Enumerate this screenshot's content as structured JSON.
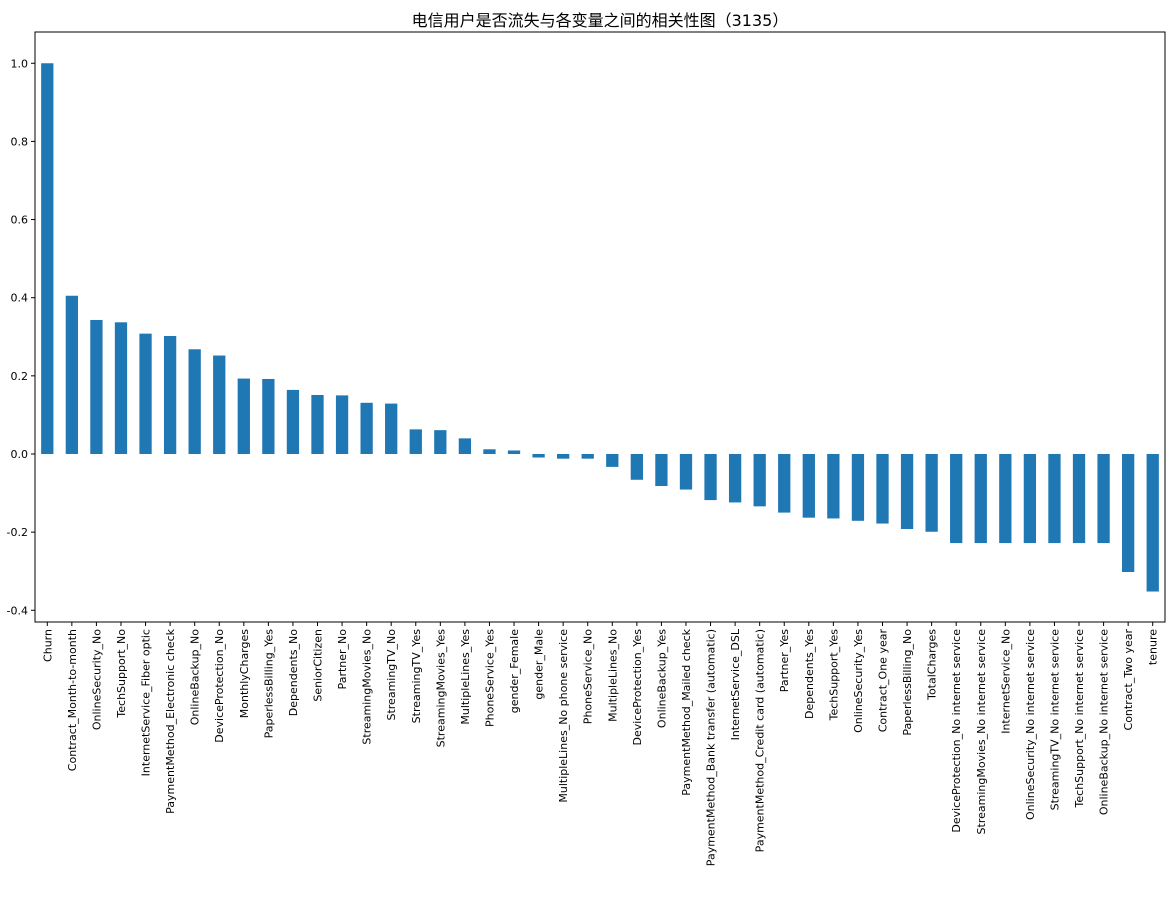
{
  "chart_data": {
    "type": "bar",
    "title": "电信用户是否流失与各变量之间的相关性图（3135）",
    "categories": [
      "Churn",
      "Contract_Month-to-month",
      "OnlineSecurity_No",
      "TechSupport_No",
      "InternetService_Fiber optic",
      "PaymentMethod_Electronic check",
      "OnlineBackup_No",
      "DeviceProtection_No",
      "MonthlyCharges",
      "PaperlessBilling_Yes",
      "Dependents_No",
      "SeniorCitizen",
      "Partner_No",
      "StreamingMovies_No",
      "StreamingTV_No",
      "StreamingTV_Yes",
      "StreamingMovies_Yes",
      "MultipleLines_Yes",
      "PhoneService_Yes",
      "gender_Female",
      "gender_Male",
      "MultipleLines_No phone service",
      "PhoneService_No",
      "MultipleLines_No",
      "DeviceProtection_Yes",
      "OnlineBackup_Yes",
      "PaymentMethod_Mailed check",
      "PaymentMethod_Bank transfer (automatic)",
      "InternetService_DSL",
      "PaymentMethod_Credit card (automatic)",
      "Partner_Yes",
      "Dependents_Yes",
      "TechSupport_Yes",
      "OnlineSecurity_Yes",
      "Contract_One year",
      "PaperlessBilling_No",
      "TotalCharges",
      "DeviceProtection_No internet service",
      "StreamingMovies_No internet service",
      "InternetService_No",
      "OnlineSecurity_No internet service",
      "StreamingTV_No internet service",
      "TechSupport_No internet service",
      "OnlineBackup_No internet service",
      "Contract_Two year",
      "tenure"
    ],
    "values": [
      1.0,
      0.405,
      0.343,
      0.337,
      0.308,
      0.302,
      0.268,
      0.252,
      0.193,
      0.192,
      0.164,
      0.151,
      0.15,
      0.131,
      0.129,
      0.063,
      0.061,
      0.04,
      0.012,
      0.009,
      -0.009,
      -0.012,
      -0.012,
      -0.033,
      -0.066,
      -0.082,
      -0.091,
      -0.118,
      -0.124,
      -0.134,
      -0.15,
      -0.163,
      -0.165,
      -0.171,
      -0.178,
      -0.192,
      -0.199,
      -0.228,
      -0.228,
      -0.228,
      -0.228,
      -0.228,
      -0.228,
      -0.228,
      -0.302,
      -0.352
    ],
    "color": "#1f77b4",
    "ylim": [
      -0.43,
      1.08
    ],
    "yticks": [
      -0.4,
      -0.2,
      {
        "value": 0,
        "label": "0.0"
      },
      0.2,
      0.4,
      0.6,
      0.8,
      {
        "value": 1,
        "label": "1.0"
      }
    ]
  }
}
